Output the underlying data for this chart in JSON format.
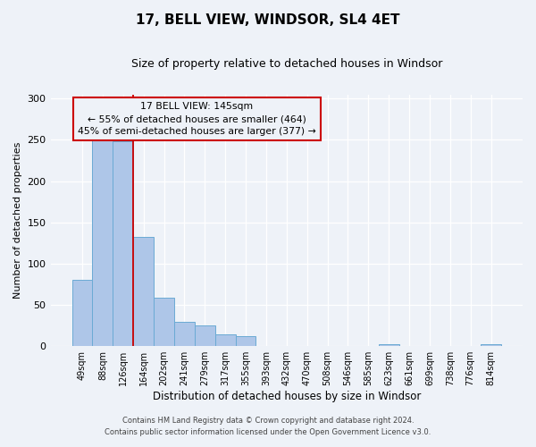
{
  "title": "17, BELL VIEW, WINDSOR, SL4 4ET",
  "subtitle": "Size of property relative to detached houses in Windsor",
  "xlabel": "Distribution of detached houses by size in Windsor",
  "ylabel": "Number of detached properties",
  "bar_labels": [
    "49sqm",
    "88sqm",
    "126sqm",
    "164sqm",
    "202sqm",
    "241sqm",
    "279sqm",
    "317sqm",
    "355sqm",
    "393sqm",
    "432sqm",
    "470sqm",
    "508sqm",
    "546sqm",
    "585sqm",
    "623sqm",
    "661sqm",
    "699sqm",
    "738sqm",
    "776sqm",
    "814sqm"
  ],
  "bar_heights": [
    80,
    250,
    248,
    132,
    59,
    30,
    25,
    14,
    12,
    0,
    0,
    0,
    0,
    0,
    0,
    2,
    0,
    0,
    0,
    0,
    2
  ],
  "bar_color": "#aec6e8",
  "bar_edge_color": "#6aaad4",
  "vline_color": "#cc0000",
  "annotation_title": "17 BELL VIEW: 145sqm",
  "annotation_line1": "← 55% of detached houses are smaller (464)",
  "annotation_line2": "45% of semi-detached houses are larger (377) →",
  "annotation_box_edgecolor": "#cc0000",
  "ylim": [
    0,
    305
  ],
  "yticks": [
    0,
    50,
    100,
    150,
    200,
    250,
    300
  ],
  "footer1": "Contains HM Land Registry data © Crown copyright and database right 2024.",
  "footer2": "Contains public sector information licensed under the Open Government Licence v3.0.",
  "bg_color": "#eef2f8"
}
